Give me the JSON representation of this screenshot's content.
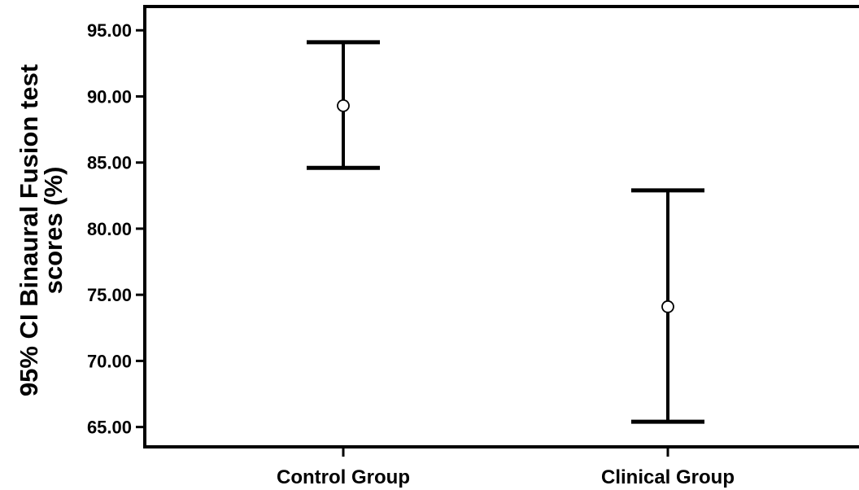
{
  "chart_data": {
    "type": "errorbar",
    "title": "",
    "xlabel": "",
    "ylabel_lines": [
      "95% CI Binaural Fusion test",
      "scores (%)"
    ],
    "ylim": [
      63.5,
      96.8
    ],
    "yticks": [
      65,
      70,
      75,
      80,
      85,
      90,
      95
    ],
    "ytick_labels": [
      "65.00",
      "70.00",
      "75.00",
      "80.00",
      "85.00",
      "90.00",
      "95.00"
    ],
    "categories": [
      "Control Group",
      "Clinical Group"
    ],
    "series": [
      {
        "mean": [
          89.3,
          74.1
        ],
        "lower": [
          84.6,
          65.4
        ],
        "upper": [
          94.1,
          82.9
        ]
      }
    ],
    "grid": false,
    "legend": "none"
  }
}
